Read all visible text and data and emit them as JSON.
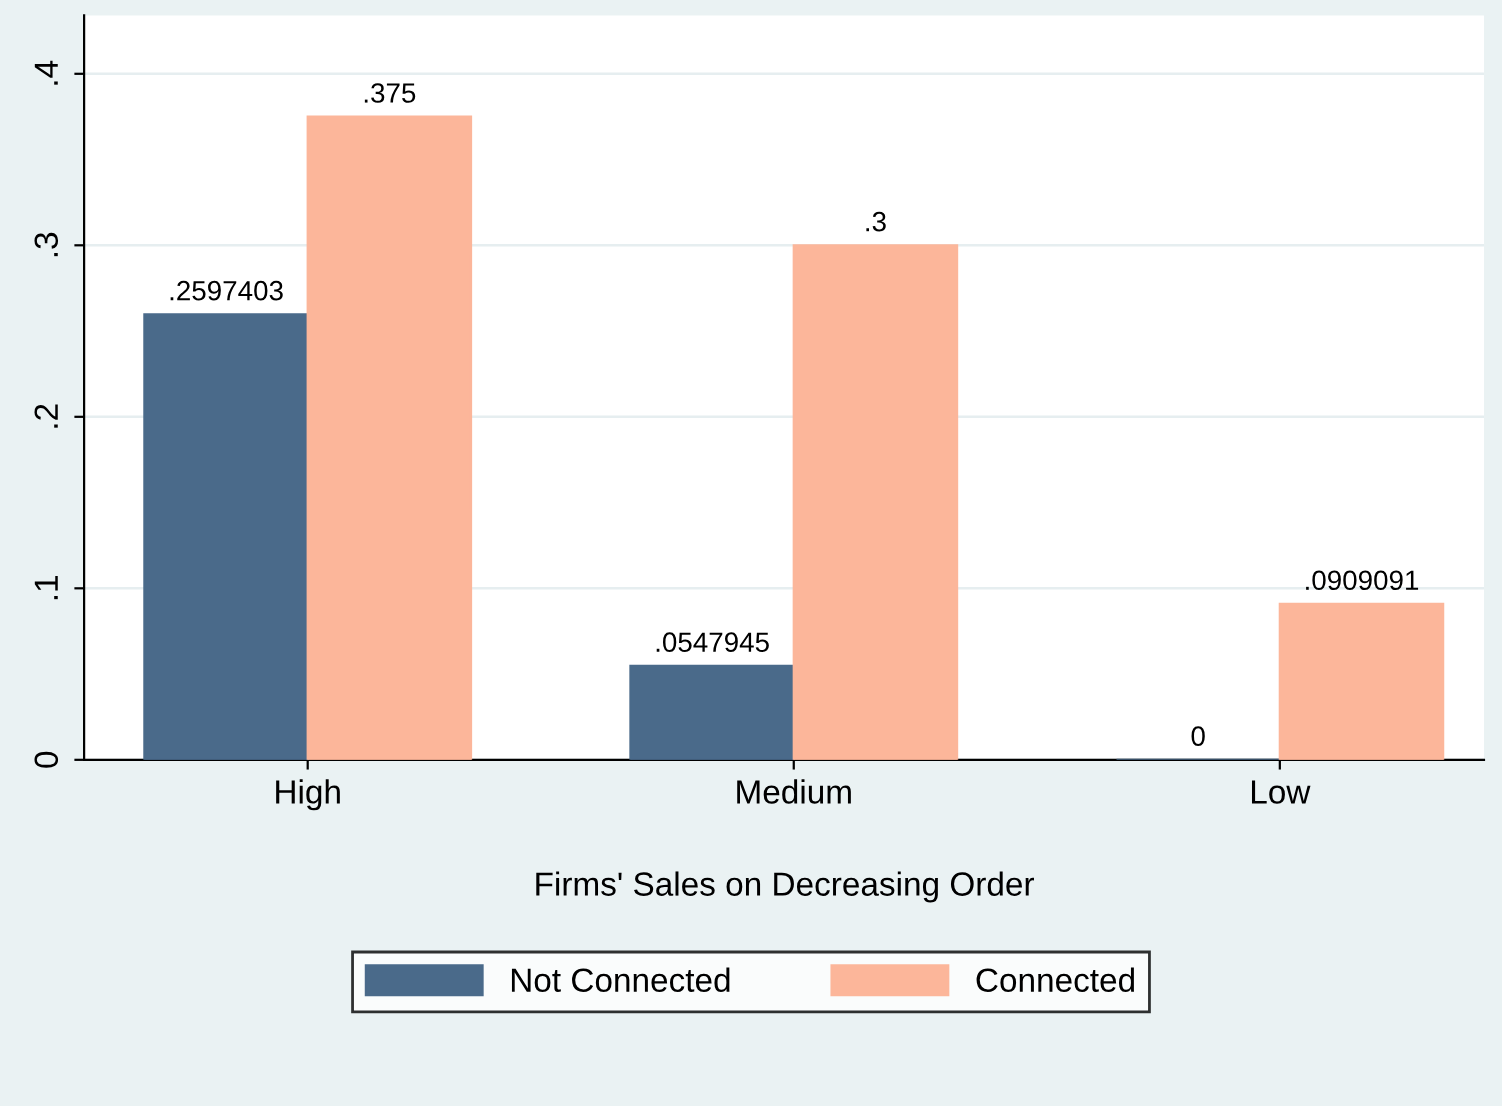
{
  "chart_data": {
    "type": "bar",
    "xlabel": "Firms' Sales on Decreasing Order",
    "categories": [
      "High",
      "Medium",
      "Low"
    ],
    "series": [
      {
        "name": "Not Connected",
        "color": "#4a6a8a",
        "values": [
          0.2597403,
          0.0547945,
          0
        ],
        "value_labels": [
          ".2597403",
          ".0547945",
          "0"
        ]
      },
      {
        "name": "Connected",
        "color": "#fcb69a",
        "values": [
          0.375,
          0.3,
          0.0909091
        ],
        "value_labels": [
          ".375",
          ".3",
          ".0909091"
        ]
      }
    ],
    "ylim": [
      0,
      0.434
    ],
    "yticks": [
      {
        "value": 0,
        "label": "0"
      },
      {
        "value": 0.1,
        "label": ".1"
      },
      {
        "value": 0.2,
        "label": ".2"
      },
      {
        "value": 0.3,
        "label": ".3"
      },
      {
        "value": 0.4,
        "label": ".4"
      }
    ],
    "grid": "y",
    "legend": "bottom"
  }
}
